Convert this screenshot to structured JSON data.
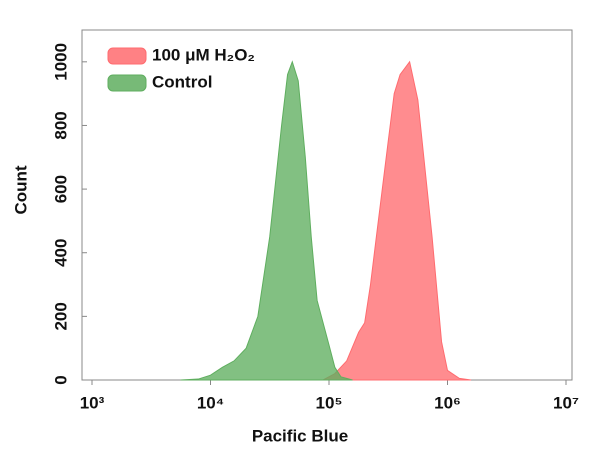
{
  "chart_data": {
    "type": "area",
    "xlabel": "Pacific Blue",
    "ylabel": "Count",
    "xscale": "log",
    "xlim": [
      1000,
      10000000
    ],
    "xticks": [
      {
        "value": 1000,
        "label": "10³"
      },
      {
        "value": 10000,
        "label": "10⁴"
      },
      {
        "value": 100000,
        "label": "10⁵"
      },
      {
        "value": 1000000,
        "label": "10⁶"
      },
      {
        "value": 10000000,
        "label": "10⁷"
      }
    ],
    "ylim": [
      0,
      1100
    ],
    "yticks": [
      0,
      200,
      400,
      600,
      800,
      1000
    ],
    "legend": "upper left",
    "series": [
      {
        "name": "100 μM H₂O₂",
        "color": "#ff6b6f",
        "x": [
          89100,
          112000,
          141000,
          178000,
          200000,
          224000,
          251000,
          316000,
          355000,
          398000,
          479000,
          562000,
          631000,
          741000,
          891000,
          1000000,
          1260000,
          1580000
        ],
        "values": [
          0,
          20,
          60,
          150,
          180,
          300,
          450,
          750,
          900,
          960,
          1000,
          880,
          700,
          450,
          120,
          30,
          5,
          0
        ]
      },
      {
        "name": "Control",
        "color": "#5fae5f",
        "x": [
          5600,
          7900,
          10000,
          12600,
          15800,
          20000,
          25100,
          31600,
          39800,
          44700,
          49000,
          55000,
          63100,
          70800,
          79400,
          100000,
          112000,
          126000,
          158000
        ],
        "values": [
          0,
          3,
          15,
          40,
          60,
          100,
          200,
          450,
          800,
          960,
          1000,
          940,
          700,
          450,
          250,
          110,
          40,
          10,
          0
        ]
      }
    ]
  }
}
